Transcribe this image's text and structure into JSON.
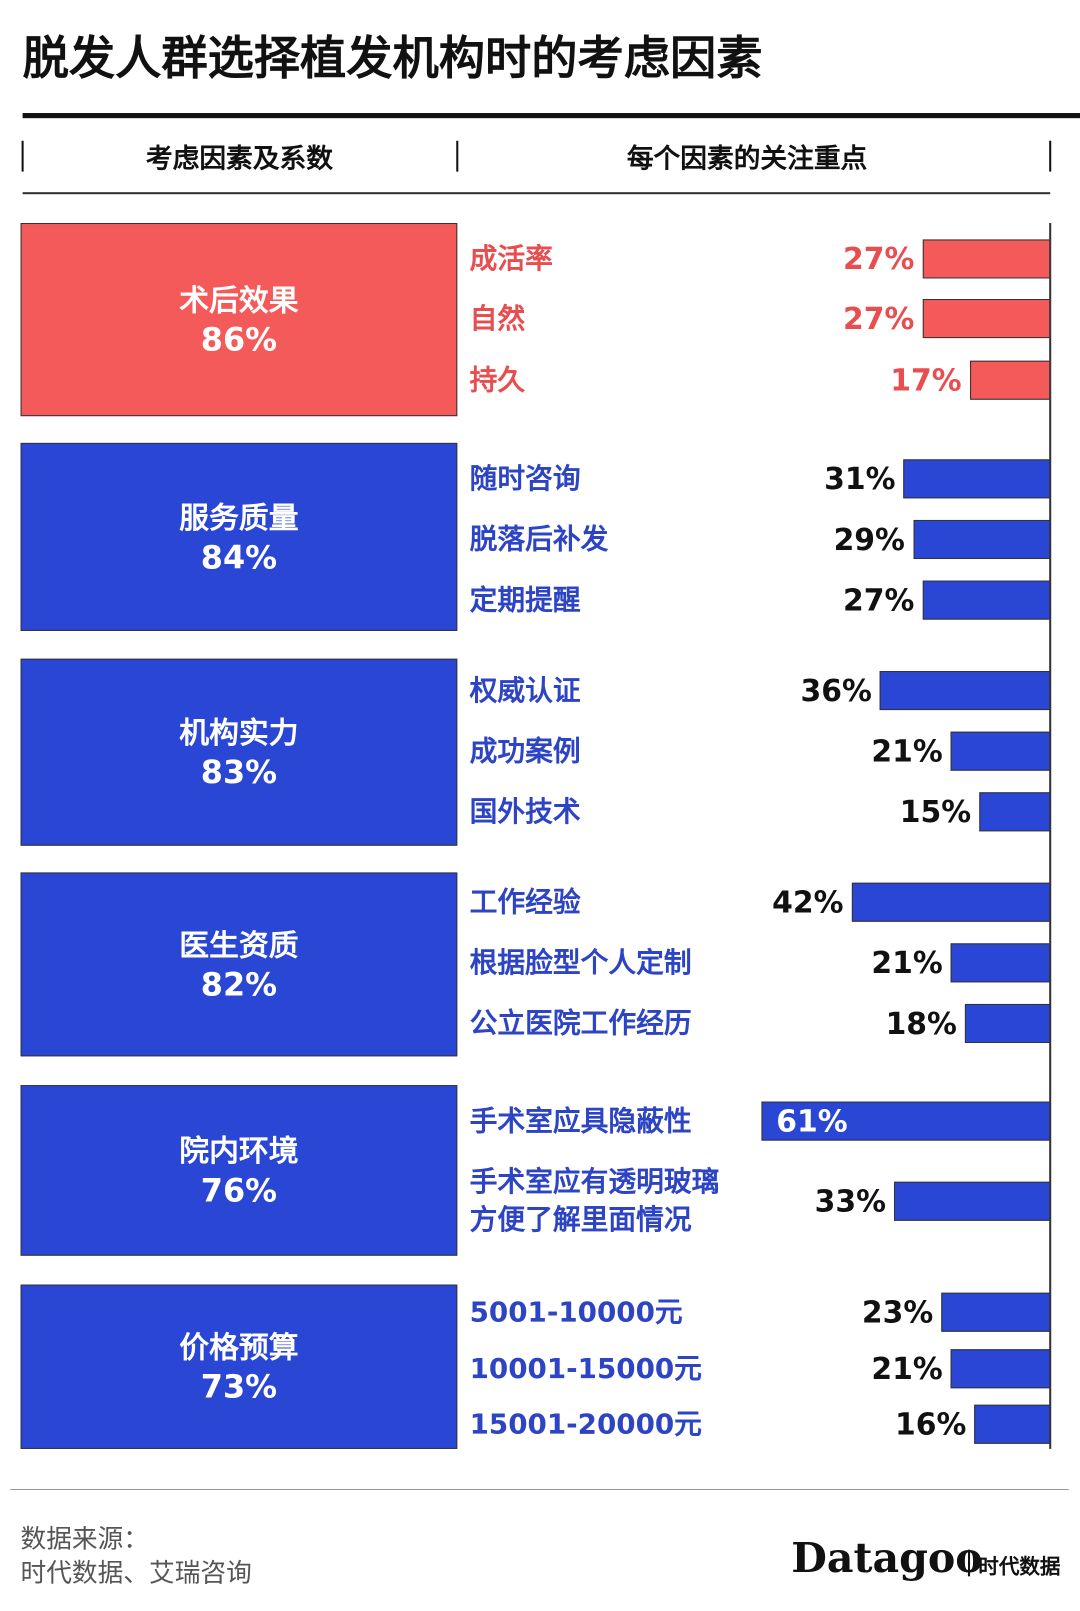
{
  "chart_data": {
    "type": "grouped-bar",
    "title": "脱发人群选择植发机构时的考虑因素",
    "header_left": "考虑因素及系数",
    "header_right": "每个因素的关注重点",
    "groups": [
      {
        "name": "术后效果",
        "value": 86,
        "value_label": "86%",
        "color": "#f45a5a",
        "text_color": "#e84e50",
        "items": [
          {
            "name": "成活率",
            "value": 27,
            "value_label": "27%"
          },
          {
            "name": "自然",
            "value": 27,
            "value_label": "27%"
          },
          {
            "name": "持久",
            "value": 17,
            "value_label": "17%"
          }
        ]
      },
      {
        "name": "服务质量",
        "value": 84,
        "value_label": "84%",
        "color": "#2a46d4",
        "text_color": "#2d44c4",
        "items": [
          {
            "name": "随时咨询",
            "value": 31,
            "value_label": "31%"
          },
          {
            "name": "脱落后补发",
            "value": 29,
            "value_label": "29%"
          },
          {
            "name": "定期提醒",
            "value": 27,
            "value_label": "27%"
          }
        ]
      },
      {
        "name": "机构实力",
        "value": 83,
        "value_label": "83%",
        "color": "#2a46d4",
        "text_color": "#2d44c4",
        "items": [
          {
            "name": "权威认证",
            "value": 36,
            "value_label": "36%"
          },
          {
            "name": "成功案例",
            "value": 21,
            "value_label": "21%"
          },
          {
            "name": "国外技术",
            "value": 15,
            "value_label": "15%"
          }
        ]
      },
      {
        "name": "医生资质",
        "value": 82,
        "value_label": "82%",
        "color": "#2a46d4",
        "text_color": "#2d44c4",
        "items": [
          {
            "name": "工作经验",
            "value": 42,
            "value_label": "42%"
          },
          {
            "name": "根据脸型个人定制",
            "value": 21,
            "value_label": "21%"
          },
          {
            "name": "公立医院工作经历",
            "value": 18,
            "value_label": "18%"
          }
        ]
      },
      {
        "name": "院内环境",
        "value": 76,
        "value_label": "76%",
        "color": "#2a46d4",
        "text_color": "#2d44c4",
        "items": [
          {
            "name": "手术室应具隐蔽性",
            "value": 61,
            "value_label": "61%"
          },
          {
            "name": "手术室应有透明玻璃\n方便了解里面情况",
            "value": 33,
            "value_label": "33%"
          }
        ]
      },
      {
        "name": "价格预算",
        "value": 73,
        "value_label": "73%",
        "color": "#2a46d4",
        "text_color": "#2d44c4",
        "items": [
          {
            "name": "5001-10000元",
            "value": 23,
            "value_label": "23%"
          },
          {
            "name": "10001-15000元",
            "value": 21,
            "value_label": "21%"
          },
          {
            "name": "15001-20000元",
            "value": 16,
            "value_label": "16%"
          }
        ]
      }
    ],
    "source_label": "数据来源：",
    "source": "时代数据、艾瑞咨询",
    "logo": "Datagoo",
    "logo_sub": "时代数据"
  }
}
